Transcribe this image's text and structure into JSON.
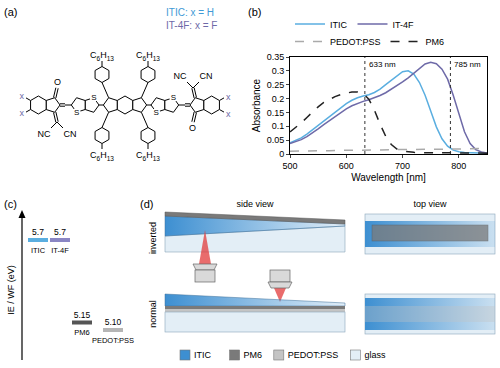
{
  "panel_letters": [
    "(a)",
    "(b)",
    "(c)",
    "(d)"
  ],
  "structure": {
    "legend": [
      {
        "text": "ITIC: x = H",
        "color": "#3f9ad6"
      },
      {
        "text": "IT-4F: x = F",
        "color": "#6e6aa8"
      }
    ],
    "alkyl": [
      "C6H13",
      "C6H13",
      "C6H13",
      "C6H13"
    ],
    "sulfur": [
      "S",
      "S",
      "S",
      "S"
    ],
    "carbonyl": [
      "O",
      "O"
    ],
    "cyano": [
      "NC",
      "CN",
      "NC",
      "CN"
    ],
    "substituent": {
      "labels": [
        "x",
        "x",
        "x",
        "x"
      ],
      "color": "#6e6aa8"
    }
  },
  "chart_data": {
    "type": "line",
    "x_label": "Wavelength [nm]",
    "y_label": "Absorbance",
    "x": [
      500,
      510,
      520,
      530,
      540,
      550,
      560,
      570,
      580,
      590,
      600,
      610,
      620,
      630,
      640,
      650,
      660,
      670,
      680,
      690,
      700,
      710,
      720,
      730,
      740,
      750,
      760,
      770,
      780,
      790,
      800,
      810,
      820,
      830,
      840,
      850
    ],
    "series": [
      {
        "name": "ITIC",
        "color": "#5aaee0",
        "line_style": "solid",
        "values": [
          0.04,
          0.048,
          0.058,
          0.072,
          0.088,
          0.104,
          0.12,
          0.136,
          0.152,
          0.168,
          0.182,
          0.194,
          0.203,
          0.209,
          0.214,
          0.222,
          0.234,
          0.25,
          0.266,
          0.283,
          0.297,
          0.3,
          0.288,
          0.258,
          0.212,
          0.155,
          0.098,
          0.055,
          0.028,
          0.014,
          0.008,
          0.005,
          0.004,
          0.003,
          0.003,
          0.003
        ]
      },
      {
        "name": "IT-4F",
        "color": "#6e6aa8",
        "line_style": "solid",
        "values": [
          0.038,
          0.044,
          0.052,
          0.063,
          0.076,
          0.091,
          0.106,
          0.121,
          0.136,
          0.15,
          0.163,
          0.174,
          0.183,
          0.19,
          0.196,
          0.203,
          0.211,
          0.221,
          0.233,
          0.246,
          0.26,
          0.275,
          0.292,
          0.31,
          0.325,
          0.331,
          0.326,
          0.306,
          0.27,
          0.212,
          0.142,
          0.08,
          0.038,
          0.016,
          0.007,
          0.004
        ]
      },
      {
        "name": "PEDOT:PSS",
        "color": "#aaaaaa",
        "line_style": "dashed",
        "values": [
          0.01,
          0.01,
          0.011,
          0.011,
          0.011,
          0.012,
          0.012,
          0.012,
          0.013,
          0.013,
          0.013,
          0.014,
          0.014,
          0.014,
          0.014,
          0.015,
          0.015,
          0.015,
          0.015,
          0.016,
          0.016,
          0.016,
          0.016,
          0.017,
          0.017,
          0.017,
          0.017,
          0.018,
          0.018,
          0.018,
          0.018,
          0.019,
          0.019,
          0.019,
          0.02,
          0.02
        ]
      },
      {
        "name": "PM6",
        "color": "#222222",
        "line_style": "dashed",
        "values": [
          0.08,
          0.095,
          0.112,
          0.132,
          0.152,
          0.17,
          0.186,
          0.198,
          0.207,
          0.214,
          0.22,
          0.224,
          0.224,
          0.218,
          0.198,
          0.158,
          0.108,
          0.064,
          0.034,
          0.018,
          0.011,
          0.008,
          0.006,
          0.005,
          0.005,
          0.004,
          0.004,
          0.004,
          0.004,
          0.004,
          0.003,
          0.003,
          0.003,
          0.003,
          0.003,
          0.003
        ]
      }
    ],
    "xlim": [
      500,
      850
    ],
    "xticks": [
      500,
      600,
      700,
      800
    ],
    "ylim": [
      0,
      0.35
    ],
    "yticks": [
      0,
      0.05,
      0.1,
      0.15,
      0.2,
      0.25,
      0.3,
      0.35
    ],
    "grid": false,
    "legend": "top",
    "annotations": [
      {
        "x": 633,
        "text": "633 nm"
      },
      {
        "x": 785,
        "text": "785 nm"
      }
    ]
  },
  "energy_levels": {
    "axis_label": "IE / WF (eV)",
    "levels": [
      {
        "name": "ITIC",
        "value": 5.7,
        "color": "#5aaee0"
      },
      {
        "name": "IT-4F",
        "value": 5.7,
        "color": "#8a86c4"
      },
      {
        "name": "PM6",
        "value": 5.15,
        "color": "#555555"
      },
      {
        "name": "PEDOT:PSS",
        "value": 5.1,
        "label": "5.10",
        "color": "#b5b5b5"
      }
    ]
  },
  "schematic": {
    "headers": [
      "side view",
      "top view"
    ],
    "rows": [
      "inverted",
      "normal"
    ],
    "legend": [
      {
        "name": "ITIC",
        "color": "#3d8fd1"
      },
      {
        "name": "PM6",
        "color": "#7a7a7a"
      },
      {
        "name": "PEDOT:PSS",
        "color": "#c4c4c4"
      },
      {
        "name": "glass",
        "color": "#e3eef6"
      }
    ]
  }
}
